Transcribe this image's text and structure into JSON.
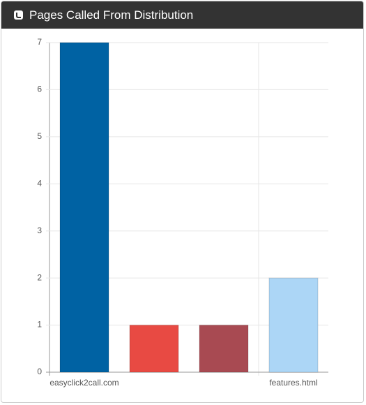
{
  "chart_data": {
    "type": "bar",
    "title": "Pages Called From Distribution",
    "categories": [
      "easyclick2call.com",
      null,
      null,
      "features.html"
    ],
    "values": [
      7,
      1,
      1,
      2
    ],
    "colors": [
      "#0062a3",
      "#e84a43",
      "#a84a52",
      "#acd6f6"
    ],
    "ylim": [
      0,
      7
    ],
    "yticks": [
      0,
      1,
      2,
      3,
      4,
      5,
      6,
      7
    ],
    "grid": true
  }
}
